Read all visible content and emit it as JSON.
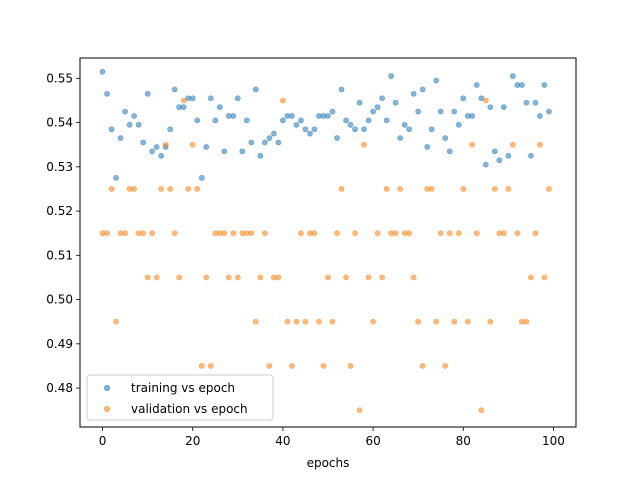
{
  "chart_data": {
    "type": "scatter",
    "title": "",
    "xlabel": "epochs",
    "ylabel": "",
    "xlim": [
      -5,
      105
    ],
    "ylim": [
      0.4712,
      0.5546
    ],
    "xticks": [
      0,
      20,
      40,
      60,
      80,
      100
    ],
    "yticks": [
      0.48,
      0.49,
      0.5,
      0.51,
      0.52,
      0.53,
      0.54,
      0.55
    ],
    "ytick_labels": [
      "0.48",
      "0.49",
      "0.50",
      "0.51",
      "0.52",
      "0.53",
      "0.54",
      "0.55"
    ],
    "grid": false,
    "legend_position": "lower-left",
    "series": [
      {
        "name": "training vs epoch",
        "color": "#1f77b4",
        "x": [
          0,
          1,
          2,
          3,
          4,
          5,
          6,
          7,
          8,
          9,
          10,
          11,
          12,
          13,
          14,
          15,
          16,
          17,
          18,
          19,
          20,
          21,
          22,
          23,
          24,
          25,
          26,
          27,
          28,
          29,
          30,
          31,
          32,
          33,
          34,
          35,
          36,
          37,
          38,
          39,
          40,
          41,
          42,
          43,
          44,
          45,
          46,
          47,
          48,
          49,
          50,
          51,
          52,
          53,
          54,
          55,
          56,
          57,
          58,
          59,
          60,
          61,
          62,
          63,
          64,
          65,
          66,
          67,
          68,
          69,
          70,
          71,
          72,
          73,
          74,
          75,
          76,
          77,
          78,
          79,
          80,
          81,
          82,
          83,
          84,
          85,
          86,
          87,
          88,
          89,
          90,
          91,
          92,
          93,
          94,
          95,
          96,
          97,
          98,
          99
        ],
        "y": [
          0.5515,
          0.5465,
          0.5385,
          0.5275,
          0.5365,
          0.5425,
          0.5395,
          0.5415,
          0.5395,
          0.5355,
          0.5465,
          0.5335,
          0.5345,
          0.5325,
          0.5345,
          0.5385,
          0.5475,
          0.5435,
          0.5435,
          0.5455,
          0.5455,
          0.5405,
          0.5275,
          0.5345,
          0.5455,
          0.5405,
          0.5435,
          0.5335,
          0.5415,
          0.5415,
          0.5455,
          0.5335,
          0.5405,
          0.5355,
          0.5475,
          0.5325,
          0.5355,
          0.5365,
          0.5375,
          0.5355,
          0.5405,
          0.5415,
          0.5415,
          0.5395,
          0.5405,
          0.5385,
          0.5375,
          0.5385,
          0.5415,
          0.5415,
          0.5415,
          0.5425,
          0.5365,
          0.5475,
          0.5405,
          0.5395,
          0.5385,
          0.5445,
          0.5385,
          0.5405,
          0.5425,
          0.5435,
          0.5455,
          0.5405,
          0.5505,
          0.5445,
          0.5365,
          0.5395,
          0.5385,
          0.5465,
          0.5425,
          0.5475,
          0.5345,
          0.5385,
          0.5495,
          0.5425,
          0.5365,
          0.5335,
          0.5425,
          0.5395,
          0.5455,
          0.5415,
          0.5415,
          0.5485,
          0.5455,
          0.5305,
          0.5435,
          0.5335,
          0.5315,
          0.5435,
          0.5325,
          0.5505,
          0.5485,
          0.5485,
          0.5445,
          0.5325,
          0.5445,
          0.5415,
          0.5485,
          0.5425
        ]
      },
      {
        "name": "validation vs epoch",
        "color": "#ff7f0e",
        "x": [
          0,
          1,
          2,
          3,
          4,
          5,
          6,
          7,
          8,
          9,
          10,
          11,
          12,
          13,
          14,
          15,
          16,
          17,
          18,
          19,
          20,
          21,
          22,
          23,
          24,
          25,
          26,
          27,
          28,
          29,
          30,
          31,
          32,
          33,
          34,
          35,
          36,
          37,
          38,
          39,
          40,
          41,
          42,
          43,
          44,
          45,
          46,
          47,
          48,
          49,
          50,
          51,
          52,
          53,
          54,
          55,
          56,
          57,
          58,
          59,
          60,
          61,
          62,
          63,
          64,
          65,
          66,
          67,
          68,
          69,
          70,
          71,
          72,
          73,
          74,
          75,
          76,
          77,
          78,
          79,
          80,
          81,
          82,
          83,
          84,
          85,
          86,
          87,
          88,
          89,
          90,
          91,
          92,
          93,
          94,
          95,
          96,
          97,
          98,
          99
        ],
        "y": [
          0.515,
          0.515,
          0.525,
          0.495,
          0.515,
          0.515,
          0.525,
          0.525,
          0.515,
          0.515,
          0.505,
          0.515,
          0.505,
          0.525,
          0.535,
          0.525,
          0.515,
          0.505,
          0.545,
          0.525,
          0.535,
          0.525,
          0.485,
          0.505,
          0.485,
          0.515,
          0.515,
          0.515,
          0.505,
          0.515,
          0.505,
          0.515,
          0.515,
          0.515,
          0.495,
          0.505,
          0.515,
          0.485,
          0.505,
          0.505,
          0.545,
          0.495,
          0.485,
          0.495,
          0.515,
          0.495,
          0.515,
          0.515,
          0.495,
          0.485,
          0.505,
          0.495,
          0.515,
          0.525,
          0.505,
          0.485,
          0.515,
          0.475,
          0.535,
          0.505,
          0.495,
          0.515,
          0.505,
          0.525,
          0.515,
          0.515,
          0.525,
          0.515,
          0.515,
          0.505,
          0.495,
          0.485,
          0.525,
          0.525,
          0.495,
          0.515,
          0.485,
          0.515,
          0.495,
          0.515,
          0.525,
          0.495,
          0.535,
          0.515,
          0.475,
          0.545,
          0.495,
          0.525,
          0.515,
          0.515,
          0.525,
          0.535,
          0.515,
          0.495,
          0.495,
          0.505,
          0.515,
          0.535,
          0.505,
          0.525
        ]
      }
    ]
  }
}
